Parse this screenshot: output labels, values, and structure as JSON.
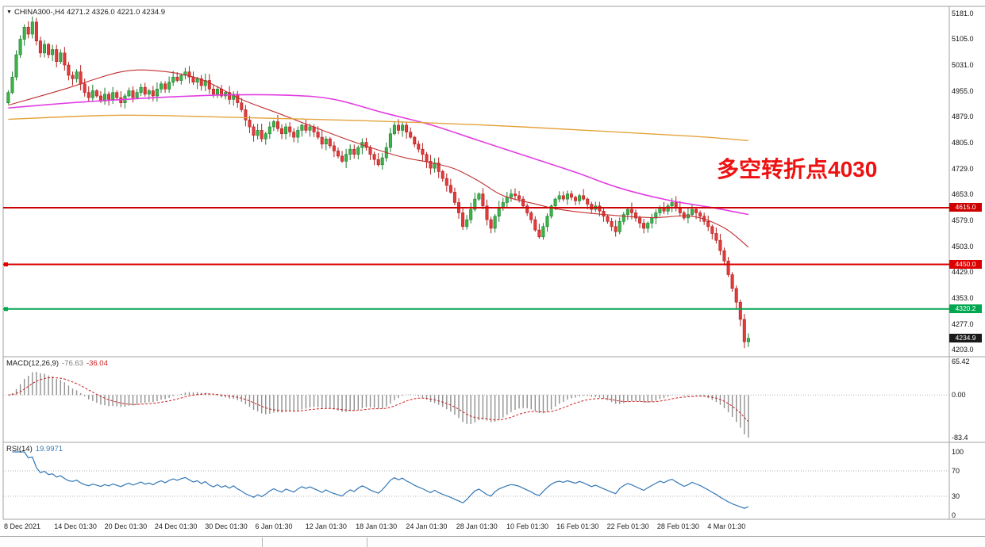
{
  "titlebar": {
    "dropdown_icon": "▼",
    "symbol_period": "CHINA300-,H4",
    "ohlc_values": "4271.2 4326.0 4221.0 4234.9"
  },
  "annotation": {
    "text": "多空转折点4030",
    "color": "#ee1111"
  },
  "colors": {
    "up": "#3cb548",
    "up_border": "#1d7d2f",
    "down": "#e23b3b",
    "down_border": "#b22020",
    "ma_red": "#c03030",
    "ma_magenta": "#e23de2",
    "ma_orange": "#e3a33c",
    "macd_hist": "#909090",
    "macd_signal": "#cc2222",
    "rsi_line": "#3377b5",
    "border": "#a0a0a0",
    "grid_dot": "#b0b0b0"
  },
  "chart_data": {
    "type": "candlestick",
    "symbol": "CHINA300-",
    "timeframe": "H4",
    "ohlc_display": {
      "open": "4271.2",
      "high": "4326.0",
      "low": "4221.0",
      "close": "4234.9"
    },
    "ylim": [
      4186,
      5196
    ],
    "yticks": [
      "5181.0",
      "5105.0",
      "5031.0",
      "4955.0",
      "4879.0",
      "4805.0",
      "4729.0",
      "4653.0",
      "4579.0",
      "4503.0",
      "4429.0",
      "4353.0",
      "4277.0",
      "4203.0"
    ],
    "xticklabels": [
      "8 Dec 2021",
      "14 Dec 01:30",
      "20 Dec 01:30",
      "24 Dec 01:30",
      "30 Dec 01:30",
      "6 Jan 01:30",
      "12 Jan 01:30",
      "18 Jan 01:30",
      "24 Jan 01:30",
      "28 Jan 01:30",
      "10 Feb 01:30",
      "16 Feb 01:30",
      "22 Feb 01:30",
      "28 Feb 01:30",
      "4 Mar 01:30"
    ],
    "first_open": 4920,
    "closes": [
      4950,
      4995,
      5060,
      5105,
      5140,
      5120,
      5155,
      5100,
      5065,
      5090,
      5060,
      5075,
      5040,
      5065,
      5030,
      5000,
      4990,
      5010,
      4975,
      4950,
      4935,
      4955,
      4940,
      4925,
      4945,
      4930,
      4950,
      4935,
      4920,
      4940,
      4955,
      4935,
      4950,
      4965,
      4945,
      4955,
      4940,
      4960,
      4975,
      4960,
      4980,
      4995,
      4985,
      5000,
      5010,
      4995,
      4980,
      4990,
      4970,
      4985,
      4960,
      4945,
      4960,
      4940,
      4950,
      4930,
      4945,
      4920,
      4900,
      4870,
      4850,
      4825,
      4840,
      4815,
      4830,
      4850,
      4865,
      4845,
      4830,
      4850,
      4835,
      4820,
      4840,
      4855,
      4840,
      4850,
      4835,
      4820,
      4800,
      4815,
      4795,
      4780,
      4765,
      4750,
      4770,
      4785,
      4770,
      4790,
      4805,
      4790,
      4770,
      4755,
      4740,
      4760,
      4790,
      4830,
      4855,
      4840,
      4855,
      4835,
      4820,
      4800,
      4785,
      4770,
      4750,
      4730,
      4745,
      4720,
      4700,
      4680,
      4660,
      4630,
      4600,
      4560,
      4580,
      4610,
      4640,
      4655,
      4620,
      4580,
      4555,
      4590,
      4615,
      4630,
      4645,
      4655,
      4650,
      4640,
      4620,
      4600,
      4580,
      4550,
      4530,
      4560,
      4590,
      4620,
      4640,
      4650,
      4640,
      4655,
      4645,
      4635,
      4650,
      4640,
      4625,
      4610,
      4620,
      4605,
      4590,
      4575,
      4560,
      4545,
      4575,
      4595,
      4610,
      4600,
      4585,
      4570,
      4555,
      4570,
      4585,
      4600,
      4615,
      4605,
      4620,
      4630,
      4615,
      4600,
      4585,
      4595,
      4610,
      4600,
      4590,
      4575,
      4560,
      4540,
      4520,
      4490,
      4460,
      4420,
      4380,
      4340,
      4290,
      4225,
      4234.9
    ],
    "ma_lines": [
      {
        "name": "ma-fast-red",
        "color": "#c03030",
        "width": 1.1,
        "points": [
          [
            0,
            4913
          ],
          [
            14,
            4960
          ],
          [
            28,
            5010
          ],
          [
            38,
            5012
          ],
          [
            48,
            4988
          ],
          [
            58,
            4930
          ],
          [
            67,
            4890
          ],
          [
            77,
            4845
          ],
          [
            87,
            4802
          ],
          [
            97,
            4765
          ],
          [
            105,
            4746
          ],
          [
            111,
            4728
          ],
          [
            117,
            4692
          ],
          [
            123,
            4650
          ],
          [
            131,
            4626
          ],
          [
            137,
            4610
          ],
          [
            148,
            4595
          ],
          [
            160,
            4586
          ],
          [
            170,
            4590
          ],
          [
            178,
            4556
          ],
          [
            184,
            4500
          ]
        ]
      },
      {
        "name": "ma-mid-magenta",
        "color": "#e23de2",
        "width": 1.6,
        "points": [
          [
            0,
            4905
          ],
          [
            10,
            4915
          ],
          [
            22,
            4925
          ],
          [
            38,
            4936
          ],
          [
            54,
            4943
          ],
          [
            70,
            4942
          ],
          [
            81,
            4930
          ],
          [
            93,
            4892
          ],
          [
            105,
            4856
          ],
          [
            117,
            4810
          ],
          [
            129,
            4764
          ],
          [
            141,
            4718
          ],
          [
            152,
            4672
          ],
          [
            164,
            4637
          ],
          [
            176,
            4613
          ],
          [
            184,
            4595
          ]
        ]
      },
      {
        "name": "ma-slow-orange",
        "color": "#e3a33c",
        "width": 1.4,
        "points": [
          [
            0,
            4872
          ],
          [
            28,
            4884
          ],
          [
            58,
            4877
          ],
          [
            88,
            4868
          ],
          [
            117,
            4856
          ],
          [
            147,
            4838
          ],
          [
            170,
            4823
          ],
          [
            184,
            4810
          ]
        ]
      }
    ],
    "hlines": [
      {
        "price": 4615.0,
        "label": "4615.0",
        "color": "#cc0000",
        "width": 2,
        "handle": false
      },
      {
        "price": 4450.0,
        "label": "4450.0",
        "color": "#dd0000",
        "width": 2,
        "handle": true
      },
      {
        "price": 4320.2,
        "label": "4320.2",
        "color": "#00a650",
        "width": 2,
        "handle": true
      }
    ],
    "current_price": {
      "value": 4234.9,
      "label": "4234.9",
      "bg": "#1a1a1a"
    },
    "macd": {
      "label": "MACD(12,26,9)",
      "value_main": "-76.63",
      "value_signal": "-36.04",
      "fast": 12,
      "slow": 26,
      "signal": 9,
      "ylim": [
        -83.4,
        65.42
      ],
      "yticks": [
        "65.42",
        "0.00",
        "-83.4"
      ]
    },
    "rsi": {
      "label": "RSI(14)",
      "value": "19.9971",
      "period": 14,
      "ylim": [
        0,
        100
      ],
      "yticks": [
        "100",
        "70",
        "30",
        "0"
      ],
      "levels": [
        70,
        30
      ]
    }
  }
}
